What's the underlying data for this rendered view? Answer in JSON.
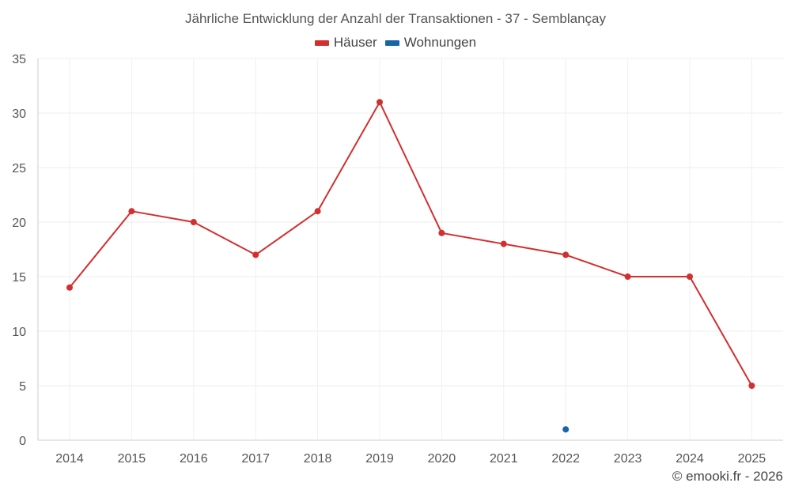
{
  "chart_data": {
    "type": "line",
    "title": "Jährliche Entwicklung der Anzahl der Transaktionen - 37 - Semblançay",
    "categories": [
      "2014",
      "2015",
      "2016",
      "2017",
      "2018",
      "2019",
      "2020",
      "2021",
      "2022",
      "2023",
      "2024",
      "2025"
    ],
    "series": [
      {
        "name": "Häuser",
        "color": "#d32f2f",
        "values": [
          14,
          21,
          20,
          17,
          21,
          31,
          19,
          18,
          17,
          15,
          15,
          5
        ]
      },
      {
        "name": "Wohnungen",
        "color": "#1565a8",
        "values": [
          null,
          null,
          null,
          null,
          null,
          null,
          null,
          null,
          1,
          null,
          null,
          null
        ]
      }
    ],
    "ylim": [
      0,
      35
    ],
    "yticks": [
      "0",
      "5",
      "10",
      "15",
      "20",
      "25",
      "30",
      "35"
    ],
    "grid": true,
    "legend_position": "top-center"
  },
  "credit": "© emooki.fr - 2026"
}
